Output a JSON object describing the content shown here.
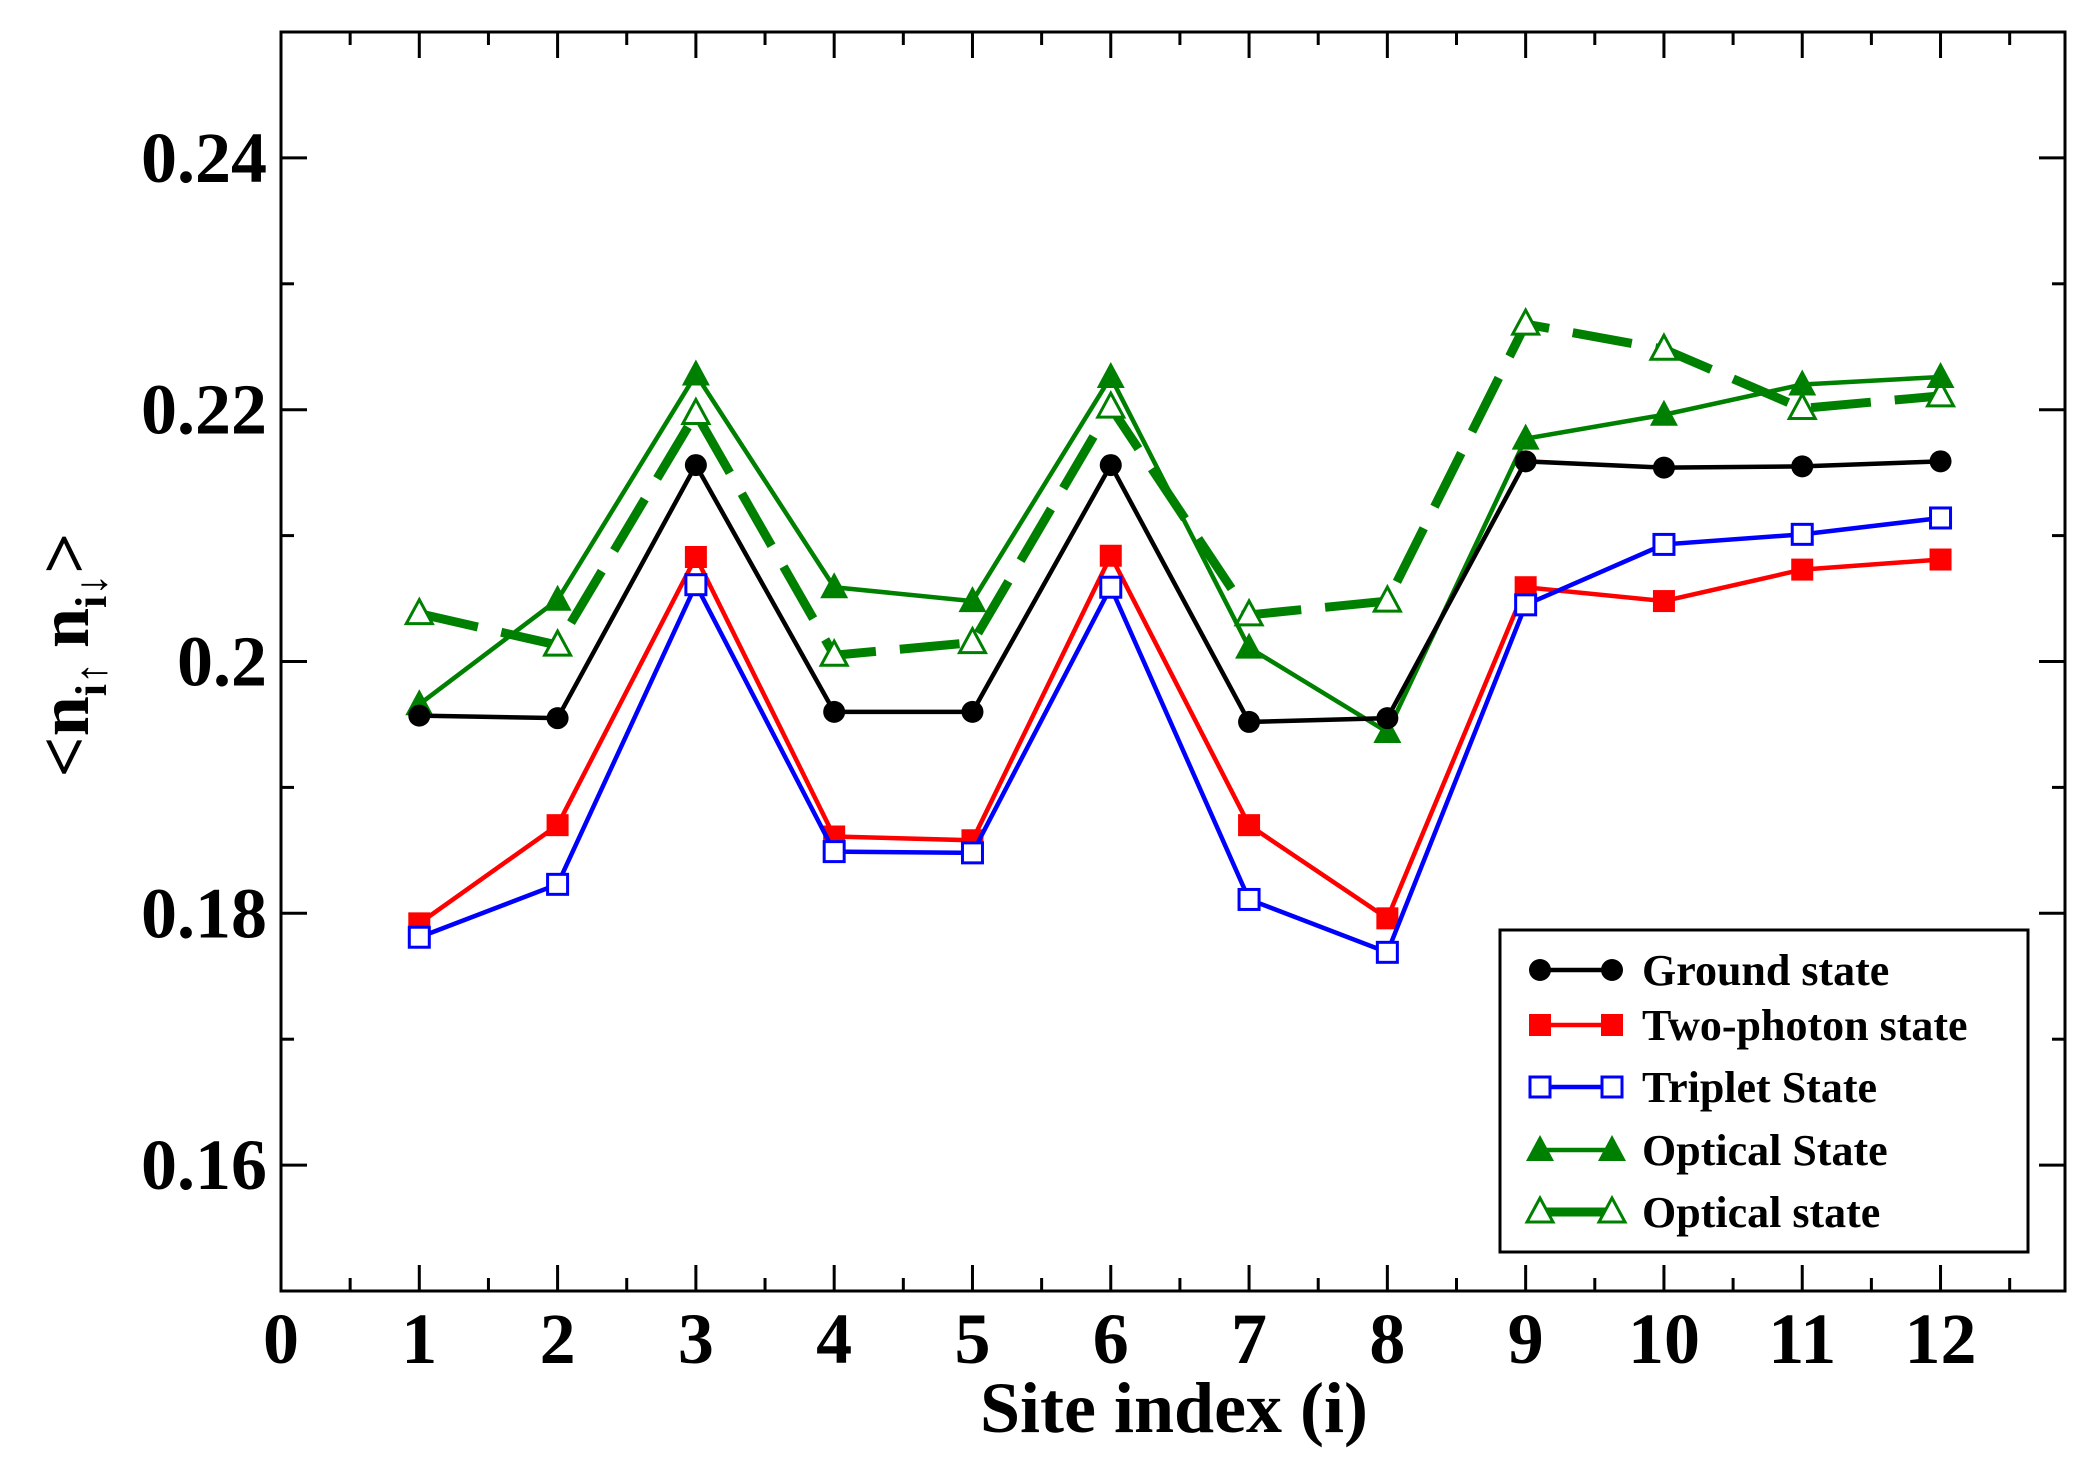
{
  "chart_data": {
    "type": "line",
    "title": "",
    "xlabel": "Site index (i)",
    "ylabel": "<n_i↑ n_i↓>",
    "ylabel_parts": {
      "open": "<",
      "n": "n",
      "sub1": "i",
      "arrow1": "↑",
      "sub2": "i",
      "arrow2": "↓",
      "close": ">"
    },
    "xlim": [
      0,
      12.9
    ],
    "ylim": [
      0.15,
      0.25
    ],
    "xticks": [
      0,
      1,
      2,
      3,
      4,
      5,
      6,
      7,
      8,
      9,
      10,
      11,
      12
    ],
    "xtick_labels": [
      "0",
      "1",
      "2",
      "3",
      "4",
      "5",
      "6",
      "7",
      "8",
      "9",
      "10",
      "11",
      "12"
    ],
    "yticks": [
      0.16,
      0.18,
      0.2,
      0.22,
      0.24
    ],
    "ytick_labels": [
      "0.16",
      "0.18",
      "0.2",
      "0.22",
      "0.24"
    ],
    "x": [
      1,
      2,
      3,
      4,
      5,
      6,
      7,
      8,
      9,
      10,
      11,
      12
    ],
    "legend_position": "bottom-right",
    "series": [
      {
        "name": "Ground state",
        "color": "#000000",
        "marker": "circle-filled",
        "dashed": false,
        "values": [
          0.1957,
          0.1955,
          0.2156,
          0.196,
          0.196,
          0.2156,
          0.1952,
          0.1955,
          0.2159,
          0.2154,
          0.2155,
          0.2159
        ]
      },
      {
        "name": "Two-photon state",
        "color": "#ff0000",
        "marker": "square-filled",
        "dashed": false,
        "values": [
          0.1792,
          0.187,
          0.2083,
          0.1861,
          0.1858,
          0.2084,
          0.187,
          0.1796,
          0.2059,
          0.2048,
          0.2073,
          0.2081
        ]
      },
      {
        "name": "Triplet State",
        "color": "#0000ff",
        "marker": "square-open",
        "dashed": false,
        "values": [
          0.1781,
          0.1823,
          0.2061,
          0.1849,
          0.1848,
          0.2059,
          0.1811,
          0.1769,
          0.2045,
          0.2093,
          0.2101,
          0.2114
        ]
      },
      {
        "name": "Optical State",
        "color": "#008000",
        "marker": "triangle-filled",
        "dashed": false,
        "values": [
          0.1966,
          0.2049,
          0.2228,
          0.2059,
          0.2048,
          0.2226,
          0.2011,
          0.1944,
          0.2177,
          0.2196,
          0.222,
          0.2226
        ]
      },
      {
        "name": "Optical state",
        "color": "#008000",
        "marker": "triangle-open",
        "dashed": true,
        "values": [
          0.2038,
          0.2013,
          0.2197,
          0.2005,
          0.2015,
          0.2202,
          0.2037,
          0.2048,
          0.2268,
          0.2248,
          0.2201,
          0.2211
        ]
      }
    ]
  }
}
